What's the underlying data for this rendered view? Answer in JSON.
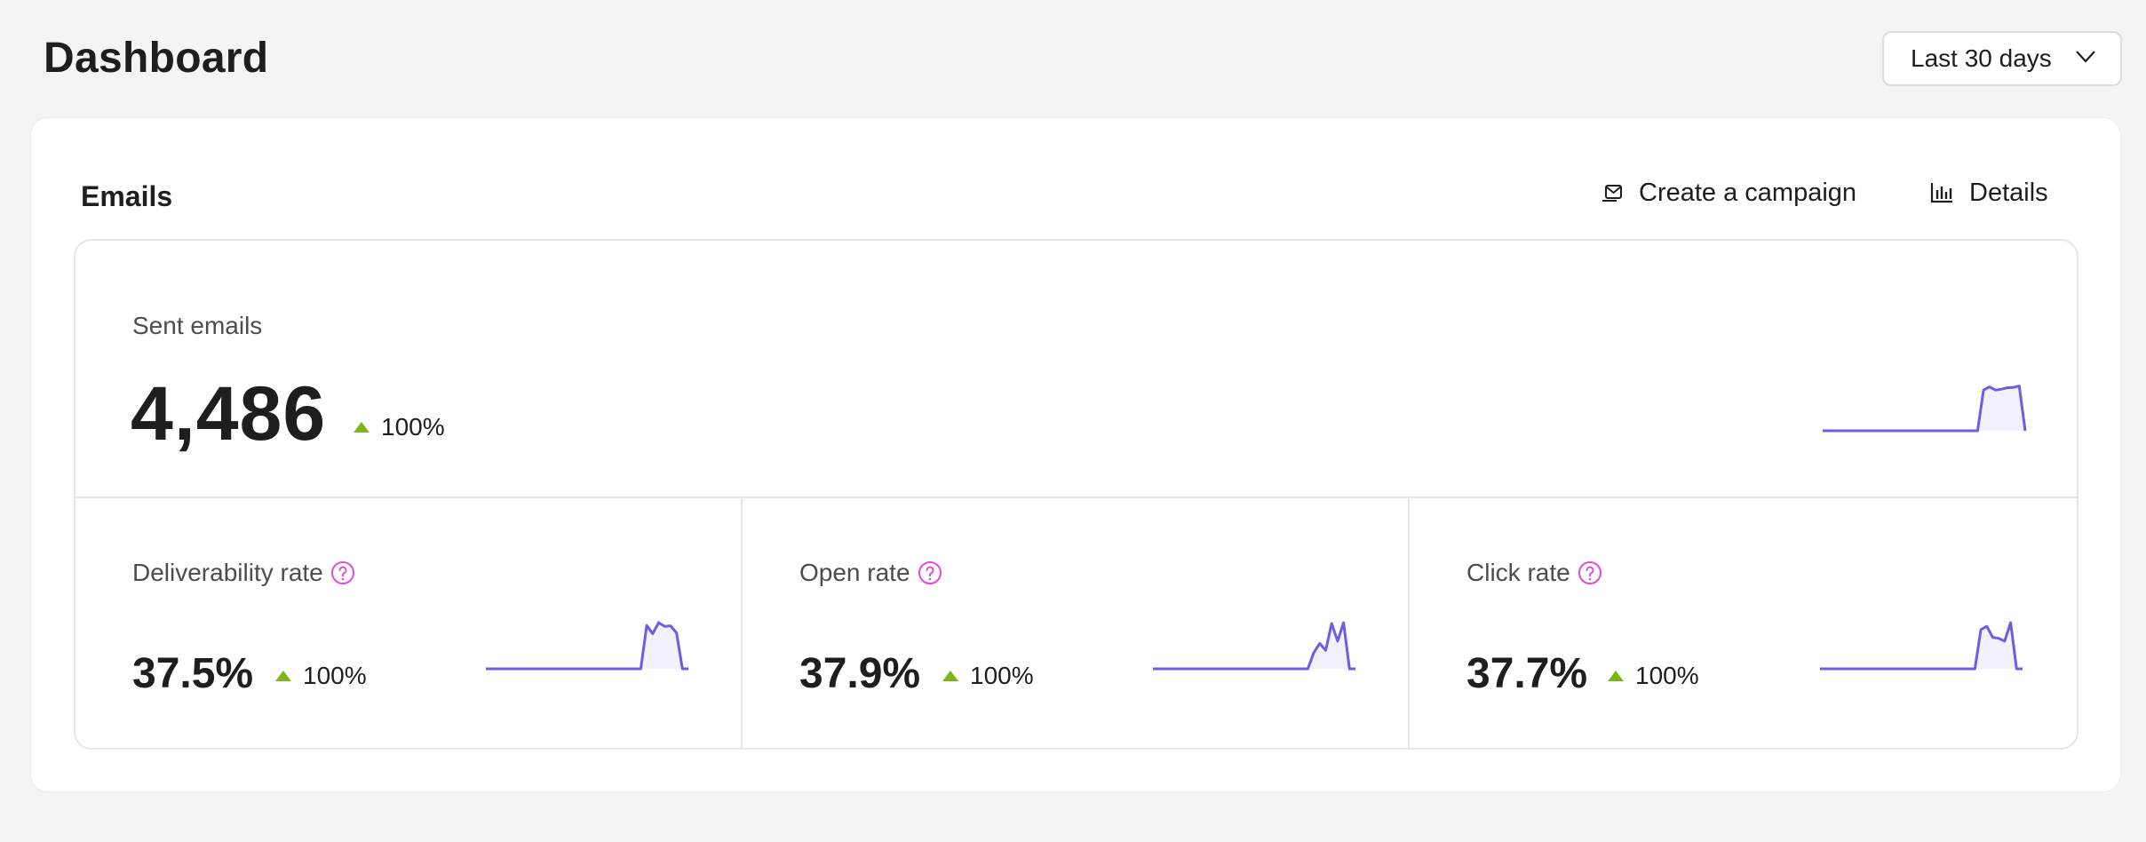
{
  "page": {
    "title": "Dashboard",
    "date_range": "Last 30 days"
  },
  "emails_card": {
    "title": "Emails",
    "actions": {
      "create_campaign": "Create a campaign",
      "details": "Details"
    }
  },
  "stats": {
    "sent_emails": {
      "label": "Sent emails",
      "value": "4,486",
      "change": "100%",
      "trend": "up",
      "sparkline": [
        0,
        0,
        0,
        0,
        0,
        0,
        0,
        0,
        0,
        0,
        0,
        0,
        0,
        0,
        0,
        0,
        0,
        0,
        0,
        0,
        0,
        0,
        0,
        0,
        0,
        0,
        0,
        0.88,
        0.95,
        0.88,
        0.9,
        0.93,
        0.94,
        0.97,
        0
      ]
    },
    "deliverability_rate": {
      "label": "Deliverability rate",
      "value": "37.5%",
      "change": "100%",
      "trend": "up",
      "sparkline": [
        0,
        0,
        0,
        0,
        0,
        0,
        0,
        0,
        0,
        0,
        0,
        0,
        0,
        0,
        0,
        0,
        0,
        0,
        0,
        0,
        0,
        0,
        0,
        0,
        0,
        0,
        0,
        0.94,
        0.76,
        1.0,
        0.92,
        0.93,
        0.78,
        0.0,
        0
      ]
    },
    "open_rate": {
      "label": "Open rate",
      "value": "37.9%",
      "change": "100%",
      "trend": "up",
      "sparkline": [
        0,
        0,
        0,
        0,
        0,
        0,
        0,
        0,
        0,
        0,
        0,
        0,
        0,
        0,
        0,
        0,
        0,
        0,
        0,
        0,
        0,
        0,
        0,
        0,
        0,
        0,
        0,
        0.35,
        0.55,
        0.4,
        0.98,
        0.6,
        1.0,
        0,
        0
      ]
    },
    "click_rate": {
      "label": "Click rate",
      "value": "37.7%",
      "change": "100%",
      "trend": "up",
      "sparkline": [
        0,
        0,
        0,
        0,
        0,
        0,
        0,
        0,
        0,
        0,
        0,
        0,
        0,
        0,
        0,
        0,
        0,
        0,
        0,
        0,
        0,
        0,
        0,
        0,
        0,
        0,
        0,
        0.85,
        0.92,
        0.68,
        0.66,
        0.6,
        1.0,
        0,
        0
      ]
    }
  },
  "colors": {
    "accent": "#6f5ce5",
    "accent_fill": "#f3f0ff",
    "trend_up": "#7cb518",
    "help_icon": "#e24ad8"
  },
  "icons": {
    "date_range_chevron": "chevron-down-icon",
    "create_campaign": "envelope-send-icon",
    "details": "bar-chart-icon",
    "help": "question-circle-icon",
    "trend_up": "triangle-up-icon"
  }
}
